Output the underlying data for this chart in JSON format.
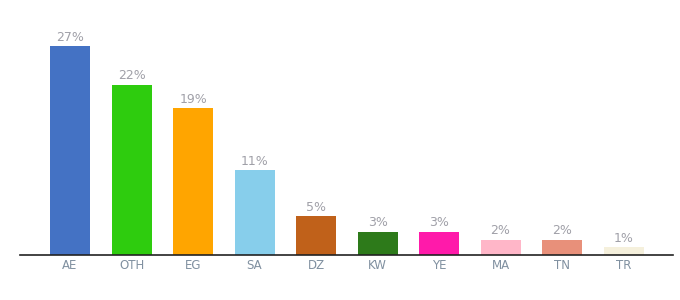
{
  "categories": [
    "AE",
    "OTH",
    "EG",
    "SA",
    "DZ",
    "KW",
    "YE",
    "MA",
    "TN",
    "TR"
  ],
  "values": [
    27,
    22,
    19,
    11,
    5,
    3,
    3,
    2,
    2,
    1
  ],
  "labels": [
    "27%",
    "22%",
    "19%",
    "11%",
    "5%",
    "3%",
    "3%",
    "2%",
    "2%",
    "1%"
  ],
  "bar_colors": [
    "#4472c4",
    "#2ecc0e",
    "#ffa500",
    "#87ceeb",
    "#c0611a",
    "#2d7a1a",
    "#ff1aaa",
    "#ffb6c8",
    "#e8907a",
    "#f5f0dc"
  ],
  "ylim": [
    0,
    31
  ],
  "background_color": "#ffffff",
  "label_color": "#a0a0a8",
  "label_fontsize": 9,
  "tick_fontsize": 8.5,
  "tick_color": "#8090a0",
  "bar_width": 0.65
}
